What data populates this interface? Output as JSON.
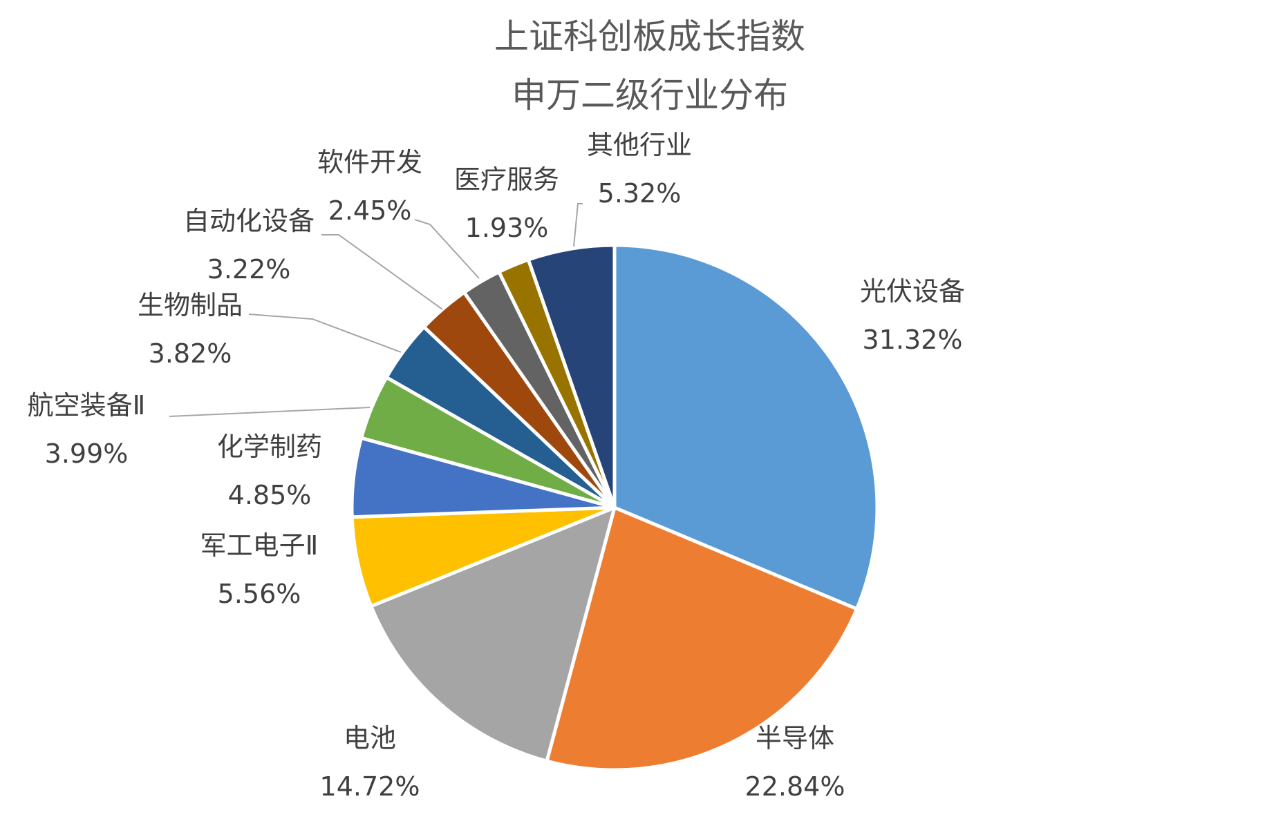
{
  "chart_data": {
    "type": "pie",
    "title": "上证科创板成长指数",
    "subtitle": "申万二级行业分布",
    "slices": [
      {
        "label": "光伏设备",
        "value": 31.32,
        "display": "31.32%",
        "color": "#5B9BD5"
      },
      {
        "label": "半导体",
        "value": 22.84,
        "display": "22.84%",
        "color": "#ED7D31"
      },
      {
        "label": "电池",
        "value": 14.72,
        "display": "14.72%",
        "color": "#A5A5A5"
      },
      {
        "label": "军工电子Ⅱ",
        "value": 5.56,
        "display": "5.56%",
        "color": "#FFC000"
      },
      {
        "label": "化学制药",
        "value": 4.85,
        "display": "4.85%",
        "color": "#4472C4"
      },
      {
        "label": "航空装备Ⅱ",
        "value": 3.99,
        "display": "3.99%",
        "color": "#70AD47"
      },
      {
        "label": "生物制品",
        "value": 3.82,
        "display": "3.82%",
        "color": "#255E91"
      },
      {
        "label": "自动化设备",
        "value": 3.22,
        "display": "3.22%",
        "color": "#9E480E"
      },
      {
        "label": "软件开发",
        "value": 2.45,
        "display": "2.45%",
        "color": "#636363"
      },
      {
        "label": "医疗服务",
        "value": 1.93,
        "display": "1.93%",
        "color": "#997300"
      },
      {
        "label": "其他行业",
        "value": 5.32,
        "display": "5.32%",
        "color": "#264478"
      }
    ],
    "start_angle": "12 o'clock",
    "direction": "clockwise",
    "legend": "none",
    "data_labels": "category name and percentage"
  }
}
